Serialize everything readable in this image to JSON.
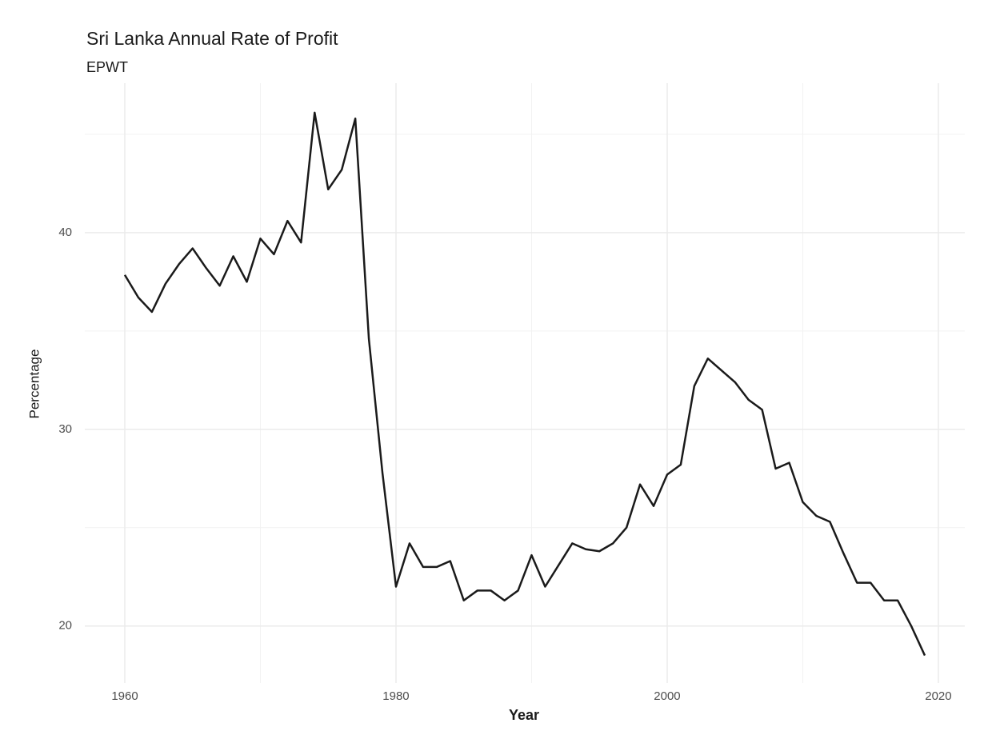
{
  "chart_data": {
    "type": "line",
    "title": "Sri Lanka Annual Rate of Profit",
    "subtitle": "EPWT",
    "x_label": "Year",
    "y_label": "Percentage",
    "x": [
      1960,
      1961,
      1962,
      1963,
      1964,
      1965,
      1966,
      1967,
      1968,
      1969,
      1970,
      1971,
      1972,
      1973,
      1974,
      1975,
      1976,
      1977,
      1978,
      1979,
      1980,
      1981,
      1982,
      1983,
      1984,
      1985,
      1986,
      1987,
      1988,
      1989,
      1990,
      1991,
      1992,
      1993,
      1994,
      1995,
      1996,
      1997,
      1998,
      1999,
      2000,
      2001,
      2002,
      2003,
      2004,
      2005,
      2006,
      2007,
      2008,
      2009,
      2010,
      2011,
      2012,
      2013,
      2014,
      2015,
      2016,
      2017,
      2018,
      2019
    ],
    "values": [
      37.85,
      36.7,
      35.97,
      37.4,
      38.4,
      39.2,
      38.2,
      37.3,
      38.8,
      37.5,
      39.7,
      38.9,
      40.6,
      39.5,
      46.1,
      42.2,
      43.2,
      45.8,
      34.6,
      27.8,
      22.0,
      24.2,
      23.0,
      23.0,
      23.3,
      21.3,
      21.8,
      21.8,
      21.3,
      21.8,
      23.6,
      22.0,
      23.1,
      24.2,
      23.9,
      23.8,
      24.2,
      25.0,
      27.2,
      26.1,
      27.7,
      28.2,
      32.2,
      33.6,
      33.0,
      32.4,
      31.5,
      31.0,
      28.0,
      28.3,
      26.3,
      25.6,
      25.3,
      23.7,
      22.2,
      22.2,
      21.3,
      21.3,
      20.0,
      18.5
    ],
    "color": "#1a1a1a",
    "xlim": [
      1957.05,
      2021.95
    ],
    "ylim": [
      17.1,
      47.6
    ],
    "xticks": [
      1960,
      1980,
      2000,
      2020
    ],
    "yticks": [
      20,
      30,
      40
    ],
    "xminorticks": [
      1970,
      1990,
      2010
    ],
    "yminorticks": [
      25,
      35,
      45
    ],
    "grid": true
  }
}
